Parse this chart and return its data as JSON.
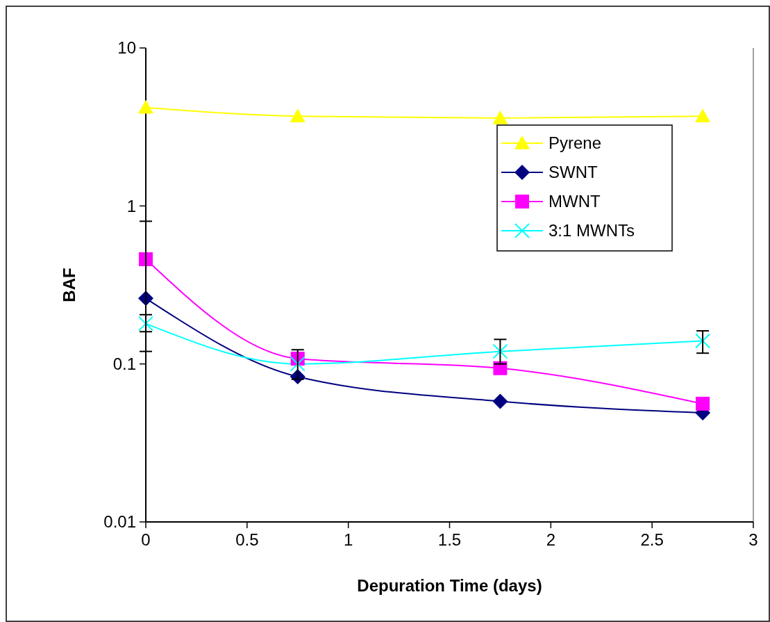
{
  "chart_data": {
    "type": "line",
    "xlabel": "Depuration Time (days)",
    "ylabel": "BAF",
    "x": [
      0,
      0.75,
      1.75,
      2.75
    ],
    "xlim": [
      0,
      3
    ],
    "xticks": [
      0,
      0.5,
      1,
      1.5,
      2,
      2.5,
      3
    ],
    "ylim": [
      0.01,
      10
    ],
    "yticks": [
      0.01,
      0.1,
      1,
      10
    ],
    "log": "y",
    "grid": false,
    "legend": "top right",
    "series": [
      {
        "name": "Pyrene",
        "color": "#ffff00",
        "marker": "triangle",
        "values": [
          4.2,
          3.7,
          3.6,
          3.7
        ]
      },
      {
        "name": "SWNT",
        "color": "#000080",
        "marker": "diamond",
        "values": [
          0.26,
          0.083,
          0.058,
          0.049
        ]
      },
      {
        "name": "MWNT",
        "color": "#ff00ff",
        "marker": "square",
        "values": [
          0.46,
          0.108,
          0.094,
          0.056
        ],
        "errors": [
          [
            0.12,
            0.8
          ],
          null,
          null,
          null
        ]
      },
      {
        "name": "3:1 MWNTs",
        "color": "#00ffff",
        "marker": "cross",
        "values": [
          0.18,
          0.1,
          0.12,
          0.14
        ],
        "errors": [
          [
            0.16,
            0.205
          ],
          [
            0.08,
            0.123
          ],
          [
            0.1,
            0.143
          ],
          [
            0.117,
            0.162
          ]
        ]
      }
    ]
  }
}
